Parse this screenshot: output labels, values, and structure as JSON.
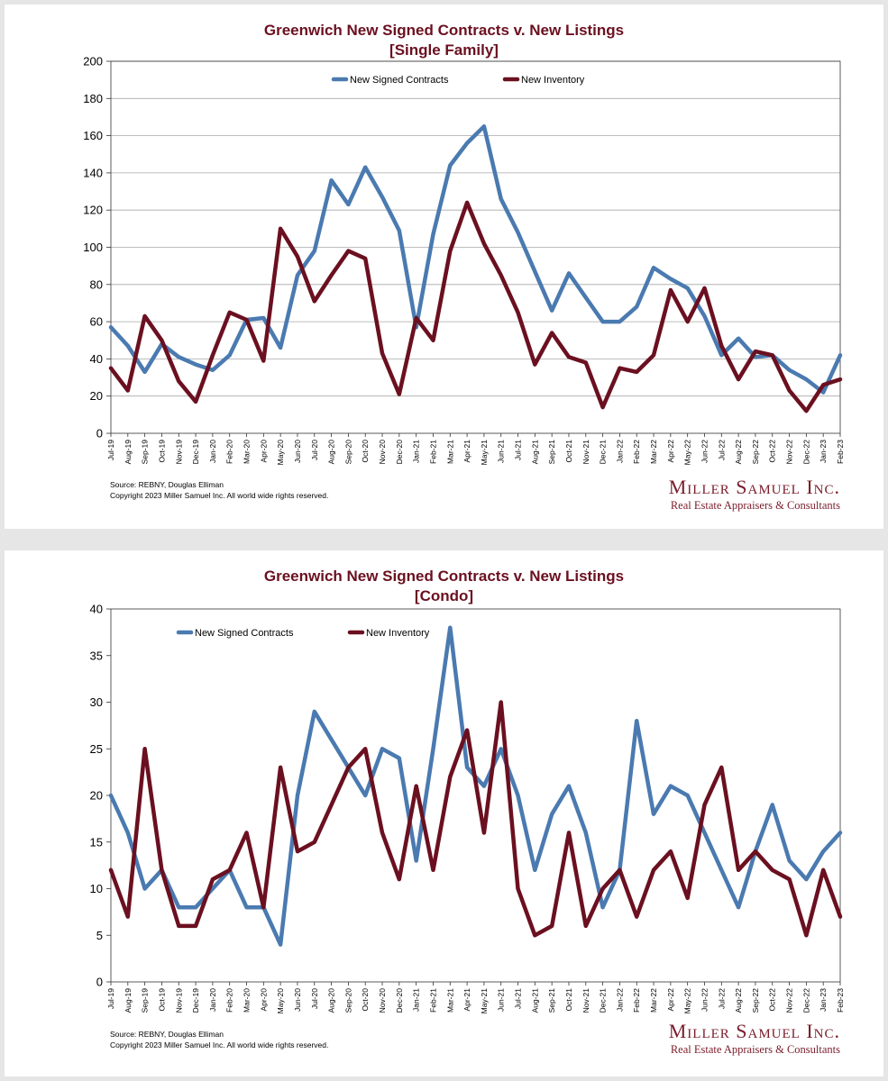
{
  "brand": {
    "name": "Miller Samuel Inc.",
    "tagline": "Real Estate Appraisers & Consultants",
    "color": "#7a1c2a"
  },
  "chart_data": [
    {
      "type": "line",
      "title": "Greenwich New Signed Contracts v. New Listings",
      "subtitle": "[Single Family]",
      "source": "Source: REBNY, Douglas Elliman",
      "copyright": "Copyright 2023 Miller Samuel Inc.  All world wide rights reserved.",
      "ylim": [
        0,
        200
      ],
      "yticks": [
        0,
        20,
        40,
        60,
        80,
        100,
        120,
        140,
        160,
        180,
        200
      ],
      "grid": true,
      "legend_position": "top-center",
      "categories": [
        "Jul-19",
        "Aug-19",
        "Sep-19",
        "Oct-19",
        "Nov-19",
        "Dec-19",
        "Jan-20",
        "Feb-20",
        "Mar-20",
        "Apr-20",
        "May-20",
        "Jun-20",
        "Jul-20",
        "Aug-20",
        "Sep-20",
        "Oct-20",
        "Nov-20",
        "Dec-20",
        "Jan-21",
        "Feb-21",
        "Mar-21",
        "Apr-21",
        "May-21",
        "Jun-21",
        "Jul-21",
        "Aug-21",
        "Sep-21",
        "Oct-21",
        "Nov-21",
        "Dec-21",
        "Jan-22",
        "Feb-22",
        "Mar-22",
        "Apr-22",
        "May-22",
        "Jun-22",
        "Jul-22",
        "Aug-22",
        "Sep-22",
        "Oct-22",
        "Nov-22",
        "Dec-22",
        "Jan-23",
        "Feb-23"
      ],
      "series": [
        {
          "name": "New Signed Contracts",
          "color": "#4a7ab0",
          "values": [
            57,
            47,
            33,
            48,
            41,
            37,
            34,
            42,
            61,
            62,
            46,
            85,
            98,
            136,
            123,
            143,
            127,
            109,
            57,
            107,
            144,
            156,
            165,
            126,
            108,
            87,
            66,
            86,
            73,
            60,
            60,
            68,
            89,
            83,
            78,
            63,
            42,
            51,
            41,
            42,
            34,
            29,
            22,
            42
          ]
        },
        {
          "name": "New Inventory",
          "color": "#6b1020",
          "values": [
            35,
            23,
            63,
            50,
            28,
            17,
            42,
            65,
            61,
            39,
            110,
            95,
            71,
            85,
            98,
            94,
            43,
            21,
            62,
            50,
            98,
            124,
            102,
            85,
            65,
            37,
            54,
            41,
            38,
            14,
            35,
            33,
            42,
            77,
            60,
            78,
            47,
            29,
            44,
            42,
            23,
            12,
            26,
            29
          ]
        }
      ]
    },
    {
      "type": "line",
      "title": "Greenwich New Signed Contracts v. New Listings",
      "subtitle": "[Condo]",
      "source": "Source: REBNY, Douglas Elliman",
      "copyright": "Copyright 2023 Miller Samuel Inc.  All world wide rights reserved.",
      "ylim": [
        0,
        40
      ],
      "yticks": [
        0,
        5,
        10,
        15,
        20,
        25,
        30,
        35,
        40
      ],
      "grid": false,
      "legend_position": "top-left",
      "categories": [
        "Jul-19",
        "Aug-19",
        "Sep-19",
        "Oct-19",
        "Nov-19",
        "Dec-19",
        "Jan-20",
        "Feb-20",
        "Mar-20",
        "Apr-20",
        "May-20",
        "Jun-20",
        "Jul-20",
        "Aug-20",
        "Sep-20",
        "Oct-20",
        "Nov-20",
        "Dec-20",
        "Jan-21",
        "Feb-21",
        "Mar-21",
        "Apr-21",
        "May-21",
        "Jun-21",
        "Jul-21",
        "Aug-21",
        "Sep-21",
        "Oct-21",
        "Nov-21",
        "Dec-21",
        "Jan-22",
        "Feb-22",
        "Mar-22",
        "Apr-22",
        "May-22",
        "Jun-22",
        "Jul-22",
        "Aug-22",
        "Sep-22",
        "Oct-22",
        "Nov-22",
        "Dec-22",
        "Jan-23",
        "Feb-23"
      ],
      "series": [
        {
          "name": "New Signed Contracts",
          "color": "#4a7ab0",
          "values": [
            20,
            16,
            10,
            12,
            8,
            8,
            10,
            12,
            8,
            8,
            4,
            20,
            29,
            26,
            23,
            20,
            25,
            24,
            13,
            25,
            38,
            23,
            21,
            25,
            20,
            12,
            18,
            21,
            16,
            8,
            12,
            28,
            18,
            21,
            20,
            16,
            12,
            8,
            14,
            19,
            13,
            11,
            14,
            16
          ]
        },
        {
          "name": "New Inventory",
          "color": "#6b1020",
          "values": [
            12,
            7,
            25,
            12,
            6,
            6,
            11,
            12,
            16,
            8,
            23,
            14,
            15,
            19,
            23,
            25,
            16,
            11,
            21,
            12,
            22,
            27,
            16,
            30,
            10,
            5,
            6,
            16,
            6,
            10,
            12,
            7,
            12,
            14,
            9,
            19,
            23,
            12,
            14,
            12,
            11,
            5,
            12,
            7
          ]
        }
      ]
    }
  ]
}
